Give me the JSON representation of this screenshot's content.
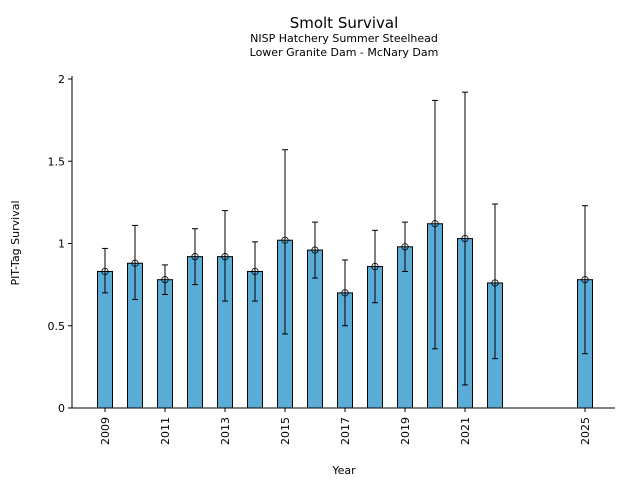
{
  "chart_data": {
    "type": "bar",
    "title": "Smolt Survival",
    "subtitle_lines": [
      "NISP Hatchery Summer Steelhead",
      "Lower Granite Dam - McNary Dam"
    ],
    "xlabel": "Year",
    "ylabel": "PIT-Tag Survival",
    "ylim": [
      0,
      2
    ],
    "xlim": [
      2007.9,
      2026.0
    ],
    "yticks": [
      0,
      0.5,
      1,
      1.5,
      2
    ],
    "ytick_labels": [
      "0",
      "0.5",
      "1",
      "1.5",
      "2"
    ],
    "xticks": [
      2009,
      2011,
      2013,
      2015,
      2017,
      2019,
      2021,
      2025
    ],
    "xtick_labels": [
      "2009",
      "2011",
      "2013",
      "2015",
      "2017",
      "2019",
      "2021",
      "2025"
    ],
    "grid": false,
    "bar_color": "#5aacd6",
    "edge_color": "#000000",
    "series": [
      {
        "name": "Survival",
        "x": [
          2009,
          2010,
          2011,
          2012,
          2013,
          2014,
          2015,
          2016,
          2017,
          2018,
          2019,
          2020,
          2021,
          2022,
          2025
        ],
        "values": [
          0.83,
          0.88,
          0.78,
          0.92,
          0.92,
          0.83,
          1.02,
          0.96,
          0.7,
          0.86,
          0.98,
          1.12,
          1.03,
          0.76,
          0.78
        ],
        "lower": [
          0.7,
          0.66,
          0.69,
          0.75,
          0.65,
          0.65,
          0.45,
          0.79,
          0.5,
          0.64,
          0.83,
          0.36,
          0.14,
          0.3,
          0.33
        ],
        "upper": [
          0.97,
          1.11,
          0.87,
          1.09,
          1.2,
          1.01,
          1.57,
          1.13,
          0.9,
          1.08,
          1.13,
          1.87,
          1.92,
          1.24,
          1.23
        ]
      }
    ]
  }
}
